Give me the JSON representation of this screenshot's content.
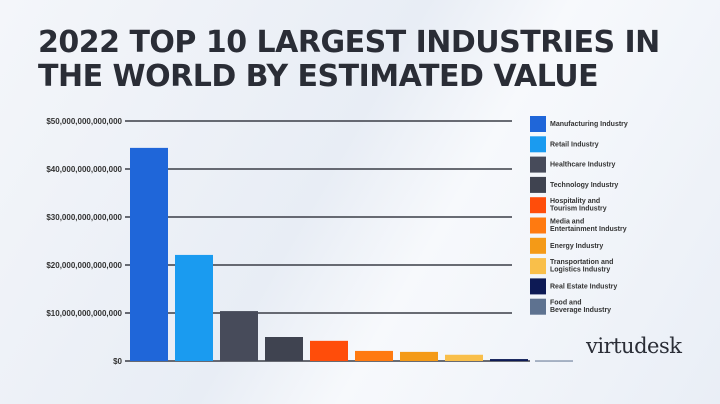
{
  "chart_data": {
    "type": "bar",
    "title": "2022 TOP 10 LARGEST INDUSTRIES IN THE WORLD BY ESTIMATED VALUE",
    "xlabel": "",
    "ylabel": "",
    "ylim": [
      0,
      50000000000000
    ],
    "yticks": [
      "$0",
      "$10,000,000,000,000",
      "$20,000,000,000,000",
      "$30,000,000,000,000",
      "$40,000,000,000,000",
      "$50,000,000,000,000"
    ],
    "grid": true,
    "legend_position": "right",
    "categories": [
      "Manufacturing Industry",
      "Retail Industry",
      "Healthcare Industry",
      "Technology Industry",
      "Hospitality and Tourism Industry",
      "Media and Entertainment Industry",
      "Energy Industry",
      "Transportation and Logistics Industry",
      "Real Estate Industry",
      "Food and Beverage Industry"
    ],
    "legend_lines": [
      [
        "Manufacturing Industry"
      ],
      [
        "Retail Industry"
      ],
      [
        "Healthcare Industry"
      ],
      [
        "Technology Industry"
      ],
      [
        "Hospitality and",
        "Tourism Industry"
      ],
      [
        "Media and",
        "Entertainment Industry"
      ],
      [
        "Energy Industry"
      ],
      [
        "Transportation and",
        "Logistics Industry"
      ],
      [
        "Real Estate Industry"
      ],
      [
        "Food and",
        "Beverage Industry"
      ]
    ],
    "values": [
      44400000000000,
      22100000000000,
      10400000000000,
      5000000000000,
      4200000000000,
      2100000000000,
      1900000000000,
      1300000000000,
      400000000000,
      100000000000
    ],
    "colors": [
      "#1f66d9",
      "#1a9bf0",
      "#474b5a",
      "#3f4350",
      "#ff4d0a",
      "#ff7a10",
      "#f49a17",
      "#f9bf4a",
      "#0d1a55",
      "#5e7290"
    ]
  },
  "logo_text": "virtudesk"
}
